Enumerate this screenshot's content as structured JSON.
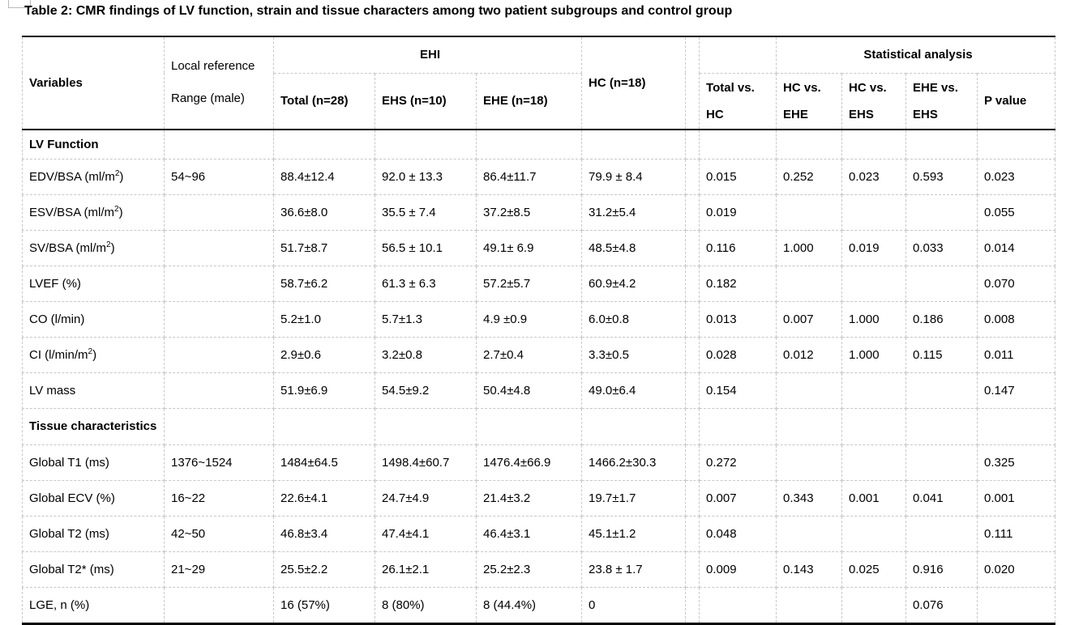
{
  "title": "Table 2: CMR findings of LV function, strain and tissue characters among two patient subgroups and control group",
  "colors": {
    "background": "#ffffff",
    "text": "#000000",
    "rule_solid": "#000000",
    "gridline_dashed": "#c7c7c7"
  },
  "table": {
    "header": {
      "variables": "Variables",
      "local_ref": [
        "Local reference",
        "Range (male)"
      ],
      "ehi": "EHI",
      "ehi_sub": {
        "total": "Total (n=28)",
        "ehs": "EHS (n=10)",
        "ehe": "EHE (n=18)"
      },
      "hc": "HC (n=18)",
      "stat_title": "Statistical analysis",
      "stat_cols": [
        [
          "Total vs.",
          "HC"
        ],
        [
          "HC vs.",
          "EHE"
        ],
        [
          "HC vs.",
          "EHS"
        ],
        [
          "EHE vs.",
          "EHS"
        ]
      ],
      "p_value": "P value"
    },
    "sections": [
      {
        "label": "LV Function",
        "tall": false,
        "rows": [
          {
            "v": [
              {
                "t": "EDV/BSA (ml/m"
              },
              {
                "t": "2",
                "s": 1
              },
              {
                "t": ")"
              }
            ],
            "ref": "54~96",
            "total": "88.4±12.4",
            "ehs": "92.0 ± 13.3",
            "ehe": "86.4±11.7",
            "hc": "79.9 ± 8.4",
            "stats": [
              "0.015",
              "0.252",
              "0.023",
              "0.593",
              "0.023"
            ]
          },
          {
            "v": [
              {
                "t": "ESV/BSA (ml/m"
              },
              {
                "t": "2",
                "s": 1
              },
              {
                "t": ")"
              }
            ],
            "ref": "",
            "total": "36.6±8.0",
            "ehs": "35.5 ± 7.4",
            "ehe": "37.2±8.5",
            "hc": "31.2±5.4",
            "stats": [
              "0.019",
              "",
              "",
              "",
              "0.055"
            ]
          },
          {
            "v": [
              {
                "t": "SV/BSA (ml/m"
              },
              {
                "t": "2",
                "s": 1
              },
              {
                "t": ")"
              }
            ],
            "ref": "",
            "total": "51.7±8.7",
            "ehs": "56.5 ± 10.1",
            "ehe": "49.1± 6.9",
            "hc": "48.5±4.8",
            "stats": [
              "0.116",
              "1.000",
              "0.019",
              "0.033",
              "0.014"
            ]
          },
          {
            "v": [
              {
                "t": "LVEF (%)"
              }
            ],
            "ref": "",
            "total": "58.7±6.2",
            "ehs": "61.3 ± 6.3",
            "ehe": "57.2±5.7",
            "hc": "60.9±4.2",
            "stats": [
              "0.182",
              "",
              "",
              "",
              "0.070"
            ]
          },
          {
            "v": [
              {
                "t": "CO (l/min)"
              }
            ],
            "ref": "",
            "total": "5.2±1.0",
            "ehs": "5.7±1.3",
            "ehe": "4.9 ±0.9",
            "hc": "6.0±0.8",
            "stats": [
              "0.013",
              "0.007",
              "1.000",
              "0.186",
              "0.008"
            ]
          },
          {
            "v": [
              {
                "t": "CI (l/min/m"
              },
              {
                "t": "2",
                "s": 1
              },
              {
                "t": ")"
              }
            ],
            "ref": "",
            "total": "2.9±0.6",
            "ehs": "3.2±0.8",
            "ehe": "2.7±0.4",
            "hc": "3.3±0.5",
            "stats": [
              "0.028",
              "0.012",
              "1.000",
              "0.115",
              "0.011"
            ]
          },
          {
            "v": [
              {
                "t": "LV mass"
              }
            ],
            "ref": "",
            "total": "51.9±6.9",
            "ehs": "54.5±9.2",
            "ehe": "50.4±4.8",
            "hc": "49.0±6.4",
            "stats": [
              "0.154",
              "",
              "",
              "",
              "0.147"
            ]
          }
        ]
      },
      {
        "label": "Tissue characteristics",
        "tall": true,
        "rows": [
          {
            "v": [
              {
                "t": "Global T1 (ms)"
              }
            ],
            "ref": "1376~1524",
            "total": "1484±64.5",
            "ehs": "1498.4±60.7",
            "ehe": "1476.4±66.9",
            "hc": "1466.2±30.3",
            "stats": [
              "0.272",
              "",
              "",
              "",
              "0.325"
            ]
          },
          {
            "v": [
              {
                "t": "Global ECV (%)"
              }
            ],
            "ref": "16~22",
            "total": "22.6±4.1",
            "ehs": "24.7±4.9",
            "ehe": "21.4±3.2",
            "hc": "19.7±1.7",
            "stats": [
              "0.007",
              "0.343",
              "0.001",
              "0.041",
              "0.001"
            ]
          },
          {
            "v": [
              {
                "t": "Global T2 (ms)"
              }
            ],
            "ref": "42~50",
            "total": "46.8±3.4",
            "ehs": "47.4±4.1",
            "ehe": "46.4±3.1",
            "hc": "45.1±1.2",
            "stats": [
              "0.048",
              "",
              "",
              "",
              "0.111"
            ]
          },
          {
            "v": [
              {
                "t": "Global T2* (ms)"
              }
            ],
            "ref": "21~29",
            "total": "25.5±2.2",
            "ehs": "26.1±2.1",
            "ehe": "25.2±2.3",
            "hc": "23.8 ± 1.7",
            "stats": [
              "0.009",
              "0.143",
              "0.025",
              "0.916",
              "0.020"
            ]
          },
          {
            "v": [
              {
                "t": "LGE, n (%)"
              }
            ],
            "ref": "",
            "total": "16 (57%)",
            "ehs": "8 (80%)",
            "ehe": "8 (44.4%)",
            "hc": "0",
            "stats": [
              "",
              "",
              "",
              "0.076",
              ""
            ]
          }
        ]
      }
    ]
  }
}
